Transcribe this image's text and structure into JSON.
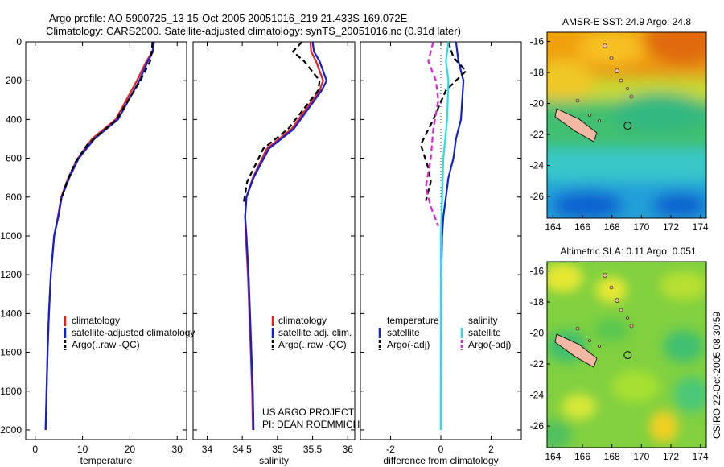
{
  "header": {
    "line1": "Argo profile: AO 5900725_13 15-Oct-2005 20051016_219 21.433S 169.072E",
    "line2": "Climatology: CARS2000. Satellite-adjusted climatology: synTS_20051016.nc (0.91d later)"
  },
  "side_stamp": "CSIRO 22-Oct-2005 08:30:59",
  "credit": {
    "line1": "US ARGO PROJECT",
    "line2": "PI: DEAN ROEMMICH"
  },
  "colors": {
    "climatology": "#e8201c",
    "satellite": "#1020d8",
    "argo": "#000000",
    "satellite_salinity": "#22e0e8",
    "argo_salinity": "#e020e0",
    "land": "#f2b8a4"
  },
  "chart_data": [
    {
      "type": "line",
      "xlabel": "temperature",
      "ylabel": "",
      "xlim": [
        -2,
        32
      ],
      "ylim": [
        2050,
        0
      ],
      "y_reversed": true,
      "xticks": [
        0,
        10,
        20,
        30
      ],
      "yticks": [
        0,
        200,
        400,
        600,
        800,
        1000,
        1200,
        1400,
        1600,
        1800,
        2000
      ],
      "legend": {
        "placement": "lower-right",
        "entries": [
          "climatology",
          "satellite-adjusted climatology",
          "Argo(..raw -QC)"
        ]
      },
      "series": [
        {
          "name": "climatology",
          "color": "#e8201c",
          "style": "solid",
          "x": [
            25.0,
            24.8,
            23.5,
            21.5,
            17.0,
            12.0,
            9.0,
            7.0,
            5.5,
            4.8,
            4.0,
            3.3,
            2.9,
            2.6,
            2.4,
            2.2
          ],
          "y": [
            0,
            50,
            100,
            200,
            400,
            500,
            600,
            700,
            800,
            900,
            1000,
            1200,
            1400,
            1600,
            1800,
            2000
          ]
        },
        {
          "name": "satellite-adjusted climatology",
          "color": "#1020d8",
          "style": "solid",
          "x": [
            25.1,
            24.9,
            23.8,
            22.0,
            17.5,
            12.5,
            9.2,
            7.2,
            5.6,
            4.9,
            4.0,
            3.3,
            2.9,
            2.6,
            2.4,
            2.2
          ],
          "y": [
            0,
            50,
            100,
            200,
            400,
            500,
            600,
            700,
            800,
            900,
            1000,
            1200,
            1400,
            1600,
            1800,
            2000
          ]
        },
        {
          "name": "Argo(..raw -QC)",
          "color": "#000000",
          "style": "dashed",
          "x": [
            24.8,
            24.6,
            24.3,
            22.2,
            17.2,
            11.0,
            8.5,
            6.7,
            5.4
          ],
          "y": [
            0,
            50,
            100,
            200,
            400,
            530,
            620,
            720,
            820
          ]
        }
      ]
    },
    {
      "type": "line",
      "xlabel": "salinity",
      "ylabel": "",
      "xlim": [
        33.8,
        36.1
      ],
      "ylim": [
        2050,
        0
      ],
      "y_reversed": true,
      "xticks": [
        34,
        34.5,
        35,
        35.5,
        36
      ],
      "legend": {
        "placement": "lower-right",
        "entries": [
          "climatology",
          "satellite adj. clim.",
          "Argo(..raw -QC)"
        ]
      },
      "series": [
        {
          "name": "climatology",
          "color": "#e8201c",
          "style": "solid",
          "x": [
            35.47,
            35.48,
            35.55,
            35.65,
            35.6,
            35.2,
            34.85,
            34.65,
            34.56,
            34.54,
            34.55,
            34.58,
            34.6,
            34.62,
            34.64,
            34.65
          ],
          "y": [
            0,
            50,
            100,
            200,
            250,
            450,
            550,
            700,
            800,
            900,
            1000,
            1200,
            1400,
            1600,
            1800,
            2000
          ]
        },
        {
          "name": "satellite adj. clim.",
          "color": "#1020d8",
          "style": "solid",
          "x": [
            35.5,
            35.52,
            35.6,
            35.7,
            35.63,
            35.23,
            34.88,
            34.66,
            34.56,
            34.54,
            34.56,
            34.59,
            34.61,
            34.63,
            34.65,
            34.66
          ],
          "y": [
            0,
            50,
            100,
            200,
            250,
            450,
            550,
            700,
            800,
            900,
            1000,
            1200,
            1400,
            1600,
            1800,
            2000
          ]
        },
        {
          "name": "Argo(..raw -QC)",
          "color": "#000000",
          "style": "dashed",
          "x": [
            35.35,
            35.22,
            35.38,
            35.6,
            35.58,
            35.15,
            34.8,
            34.57,
            34.52
          ],
          "y": [
            0,
            50,
            100,
            200,
            250,
            450,
            550,
            720,
            830
          ]
        }
      ]
    },
    {
      "type": "line",
      "xlabel": "difference from climatology",
      "ylabel": "",
      "xlim": [
        -3.2,
        3.2
      ],
      "ylim": [
        2050,
        0
      ],
      "y_reversed": true,
      "xticks": [
        -2,
        0,
        2
      ],
      "legend": {
        "placement": "lower-right",
        "entries": [
          "temperature",
          "satellite",
          "Argo(-adj)",
          "salinity",
          "satellite",
          "Argo(-adj)"
        ]
      },
      "series": [
        {
          "name": "satellite",
          "group": "temperature",
          "color": "#1020d8",
          "style": "solid",
          "x": [
            0.6,
            0.7,
            0.9,
            0.8,
            0.6,
            0.5,
            0.3,
            0.2,
            0.1,
            0.05,
            0.02,
            0.01,
            0.0,
            0.0
          ],
          "y": [
            0,
            100,
            200,
            400,
            500,
            600,
            700,
            800,
            900,
            1000,
            1200,
            1500,
            1800,
            2000
          ]
        },
        {
          "name": "Argo(-adj)",
          "group": "temperature",
          "color": "#000000",
          "style": "dashed",
          "x": [
            0.3,
            0.5,
            1.0,
            0.2,
            -0.3,
            -0.8,
            -0.5,
            -0.4,
            -0.6
          ],
          "y": [
            0,
            80,
            150,
            250,
            400,
            530,
            650,
            720,
            820
          ]
        },
        {
          "name": "satellite",
          "group": "salinity",
          "color": "#22e0e8",
          "style": "solid",
          "x": [
            0.3,
            0.2,
            0.3,
            0.25,
            0.1,
            0.05,
            0.0,
            0.0,
            0.0,
            0.0,
            0.0,
            0.0
          ],
          "y": [
            0,
            100,
            200,
            400,
            600,
            800,
            1000,
            1200,
            1400,
            1600,
            1800,
            2000
          ]
        },
        {
          "name": "Argo(-adj)",
          "group": "salinity",
          "color": "#e020e0",
          "style": "dashed",
          "x": [
            -0.3,
            -0.4,
            -0.5,
            -0.2,
            -0.1,
            -0.3,
            -0.4,
            -0.6,
            -0.4,
            -0.1
          ],
          "y": [
            0,
            50,
            100,
            200,
            300,
            450,
            600,
            750,
            850,
            950
          ]
        }
      ]
    },
    {
      "type": "heatmap",
      "title": "AMSR-E SST: 24.9 Argo: 24.8",
      "xlim": [
        163.6,
        174.4
      ],
      "ylim": [
        -27.4,
        -15.4
      ],
      "xticks": [
        164,
        166,
        168,
        170,
        172,
        174
      ],
      "yticks": [
        -16,
        -18,
        -20,
        -22,
        -24,
        -26
      ],
      "colormap": "jet",
      "profile_marker": {
        "lon": 169.072,
        "lat": -21.433
      }
    },
    {
      "type": "heatmap",
      "title": "Altimetric SLA: 0.11 Argo: 0.051",
      "xlim": [
        163.6,
        174.4
      ],
      "ylim": [
        -27.4,
        -15.4
      ],
      "xticks": [
        164,
        166,
        168,
        170,
        172,
        174
      ],
      "yticks": [
        -16,
        -18,
        -20,
        -22,
        -24,
        -26
      ],
      "colormap": "jet",
      "profile_marker": {
        "lon": 169.072,
        "lat": -21.433
      }
    }
  ]
}
